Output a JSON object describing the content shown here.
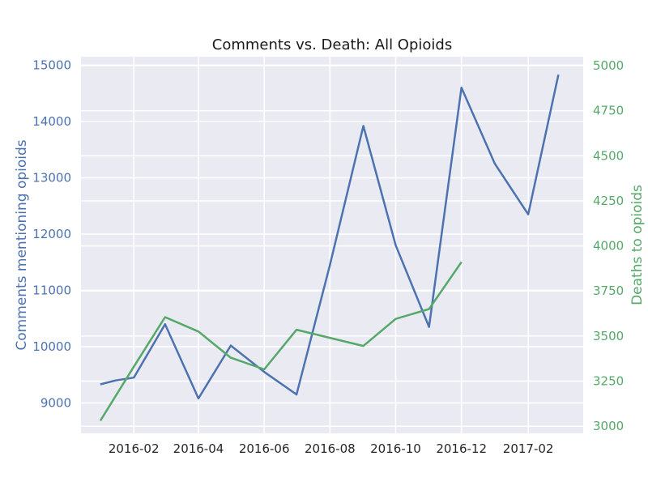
{
  "chart_data": {
    "type": "line",
    "title": "Comments vs. Death: All Opioids",
    "xlabel": "",
    "x_ticks": [
      "2016-02",
      "2016-04",
      "2016-06",
      "2016-08",
      "2016-10",
      "2016-12",
      "2017-02"
    ],
    "x_range": [
      "2015-12-14",
      "2017-03-24"
    ],
    "grid": true,
    "legend": "none",
    "y_left": {
      "label": "Comments mentioning opioids",
      "range": [
        8460,
        15150
      ],
      "ticks": [
        9000,
        10000,
        11000,
        12000,
        13000,
        14000,
        15000
      ],
      "color": "#4c72b0"
    },
    "y_right": {
      "label": "Deaths to opioids",
      "range": [
        2960,
        5050
      ],
      "ticks": [
        3000,
        3250,
        3500,
        3750,
        4000,
        4250,
        4500,
        4750,
        5000
      ],
      "color": "#55a868"
    },
    "series": [
      {
        "axis": "left",
        "color": "#4c72b0",
        "x": [
          "2016-01-01",
          "2016-01-15",
          "2016-02-01",
          "2016-03-01",
          "2016-04-01",
          "2016-05-01",
          "2016-06-01",
          "2016-07-01",
          "2016-08-01",
          "2016-09-01",
          "2016-10-01",
          "2016-11-01",
          "2016-12-01",
          "2017-01-01",
          "2017-02-01",
          "2017-03-01"
        ],
        "y": [
          9330,
          9400,
          9450,
          10400,
          9080,
          10020,
          9550,
          9150,
          11450,
          13920,
          11800,
          10350,
          14600,
          13250,
          12350,
          14830
        ]
      },
      {
        "axis": "right",
        "color": "#55a868",
        "x": [
          "2016-01-01",
          "2016-02-01",
          "2016-03-01",
          "2016-04-01",
          "2016-05-01",
          "2016-06-01",
          "2016-07-01",
          "2016-08-01",
          "2016-09-01",
          "2016-10-01",
          "2016-11-01",
          "2016-12-01"
        ],
        "y": [
          3030,
          3330,
          3605,
          3525,
          3380,
          3315,
          3535,
          3490,
          3445,
          3595,
          3650,
          3910
        ]
      }
    ]
  }
}
